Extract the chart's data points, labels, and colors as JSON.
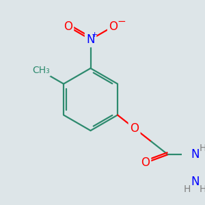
{
  "background_color": "#dde5e8",
  "bond_color": "#2d8a6e",
  "atom_colors": {
    "O": "#ff0000",
    "N": "#0000ff",
    "C": "#2d8a6e",
    "H": "#808080"
  },
  "figsize": [
    3.0,
    3.0
  ],
  "dpi": 100,
  "lw": 1.6
}
